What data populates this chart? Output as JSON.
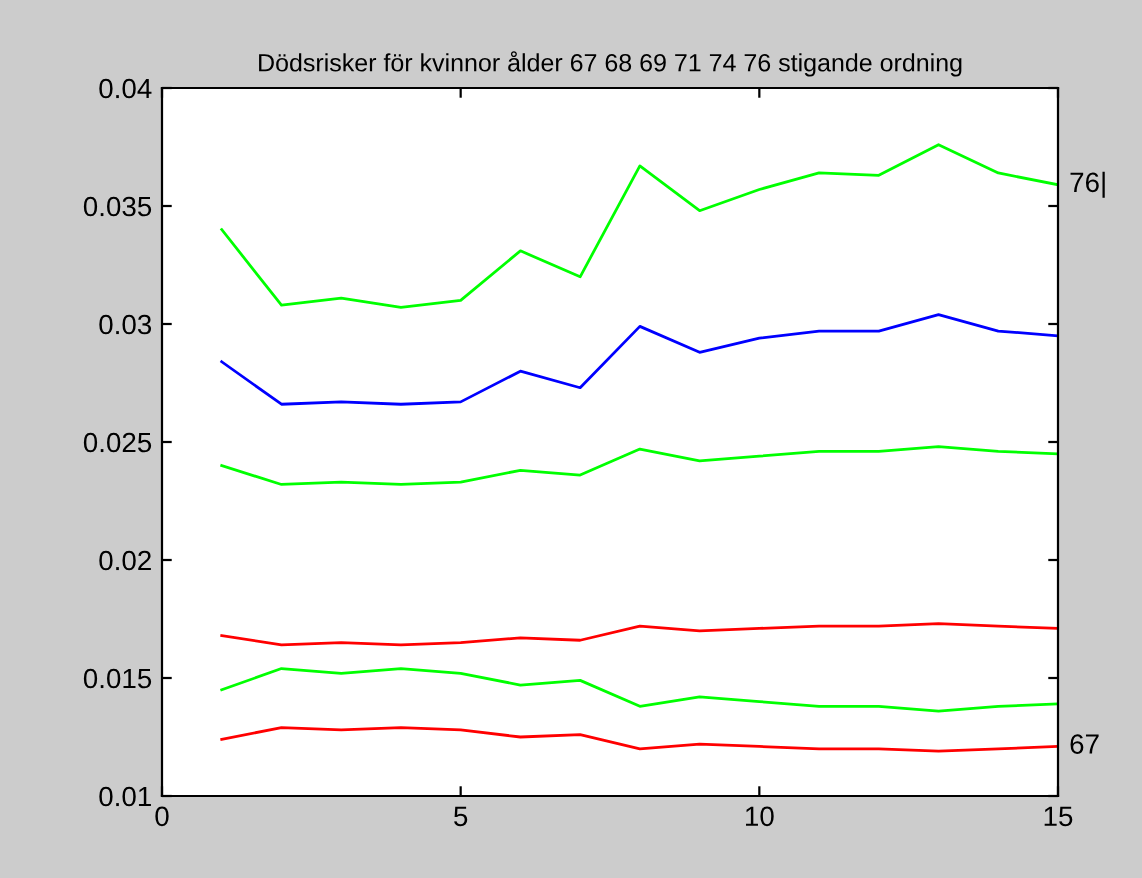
{
  "chart_data": {
    "type": "line",
    "title": "Dödsrisker för kvinnor ålder 67 68 69 71 74 76 stigande ordning",
    "x": [
      1,
      2,
      3,
      4,
      5,
      6,
      7,
      8,
      9,
      10,
      11,
      12,
      13,
      14,
      15
    ],
    "series": [
      {
        "color": "#ff0000",
        "values": [
          0.0124,
          0.0129,
          0.0128,
          0.0129,
          0.0128,
          0.0125,
          0.0126,
          0.012,
          0.0122,
          0.0121,
          0.012,
          0.012,
          0.0119,
          0.012,
          0.0121
        ]
      },
      {
        "color": "#00ff00",
        "values": [
          0.0145,
          0.0154,
          0.0152,
          0.0154,
          0.0152,
          0.0147,
          0.0149,
          0.0138,
          0.0142,
          0.014,
          0.0138,
          0.0138,
          0.0136,
          0.0138,
          0.0139
        ]
      },
      {
        "color": "#ff0000",
        "values": [
          0.0168,
          0.0164,
          0.0165,
          0.0164,
          0.0165,
          0.0167,
          0.0166,
          0.0172,
          0.017,
          0.0171,
          0.0172,
          0.0172,
          0.0173,
          0.0172,
          0.0171
        ]
      },
      {
        "color": "#00ff00",
        "values": [
          0.024,
          0.0232,
          0.0233,
          0.0232,
          0.0233,
          0.0238,
          0.0236,
          0.0247,
          0.0242,
          0.0244,
          0.0246,
          0.0246,
          0.0248,
          0.0246,
          0.0245
        ]
      },
      {
        "color": "#0000ff",
        "values": [
          0.0284,
          0.0266,
          0.0267,
          0.0266,
          0.0267,
          0.028,
          0.0273,
          0.0299,
          0.0288,
          0.0294,
          0.0297,
          0.0297,
          0.0304,
          0.0297,
          0.0295
        ]
      },
      {
        "color": "#00ff00",
        "values": [
          0.034,
          0.0308,
          0.0311,
          0.0307,
          0.031,
          0.0331,
          0.032,
          0.0367,
          0.0348,
          0.0357,
          0.0364,
          0.0363,
          0.0376,
          0.0364,
          0.0359
        ]
      }
    ],
    "annotations": [
      {
        "text": "76|",
        "x": 15,
        "y": 0.0359
      },
      {
        "text": "67",
        "x": 15,
        "y": 0.0121
      }
    ],
    "xlim": [
      0,
      15
    ],
    "xticks": [
      0,
      5,
      10,
      15
    ],
    "ylim": [
      0.01,
      0.04
    ],
    "yticks": [
      0.01,
      0.015,
      0.02,
      0.025,
      0.03,
      0.035,
      0.04
    ],
    "grid": false,
    "legend": false,
    "marker": "none",
    "line_style": "solid"
  }
}
